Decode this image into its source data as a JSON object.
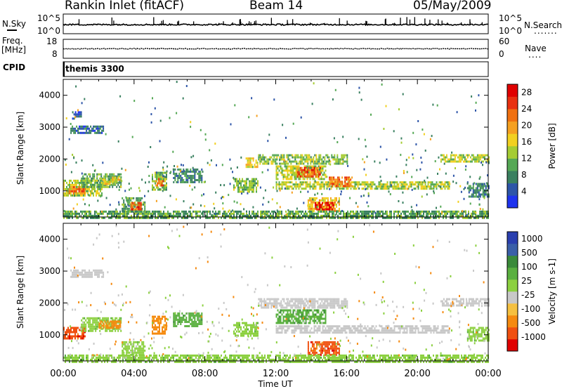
{
  "header": {
    "station": "Rankin Inlet (fitACF)",
    "beam": "Beam 14",
    "date": "05/May/2009"
  },
  "strip_labels": {
    "nsky": "N.Sky",
    "nsearch": "N.Search",
    "nsky_top": "10^5",
    "nsky_bot": "10^0",
    "nsearch_top": "10^5",
    "nsearch_bot": "10^0",
    "freq": "Freq.",
    "freq_unit": "[MHz]",
    "freq_top": "18",
    "freq_bot": "8",
    "nave": "Nave",
    "nave_top": "60",
    "nave_bot": "0",
    "cpid": "CPID",
    "cpid_value": "themis 3300"
  },
  "colors": {
    "power_scale": [
      "#1e33ee",
      "#2d55a8",
      "#3a8060",
      "#55a855",
      "#a5cc33",
      "#f2d020",
      "#f5a020",
      "#f07010",
      "#e83010",
      "#e00000"
    ],
    "velocity_scale": [
      "#e00000",
      "#f05010",
      "#f58a10",
      "#f5c040",
      "#c8c8c8",
      "#8cd040",
      "#5ab040",
      "#3a8a3a",
      "#3a5fa8",
      "#2a3faf"
    ],
    "ground_scatter": "#c8c8c8"
  },
  "chart_data": [
    {
      "type": "heatmap",
      "title": "",
      "xlabel": "",
      "ylabel": "Slant Range [km]",
      "xlim": [
        "00:00",
        "24:00"
      ],
      "ylim": [
        180,
        4500
      ],
      "x_ticks": [
        "00:00",
        "04:00",
        "08:00",
        "12:00",
        "16:00",
        "20:00",
        "00:00"
      ],
      "y_ticks": [
        1000,
        2000,
        3000,
        4000
      ],
      "colorbar": {
        "label": "Power [dB]",
        "ticks": [
          4,
          8,
          12,
          16,
          20,
          24,
          28
        ],
        "range": [
          0,
          30
        ]
      },
      "regions": [
        {
          "t0": 0.0,
          "t1": 2.2,
          "r0": 850,
          "r1": 1350,
          "value": 14
        },
        {
          "t0": 0.3,
          "t1": 1.2,
          "r0": 900,
          "r1": 1150,
          "value": 22
        },
        {
          "t0": 1.0,
          "t1": 3.3,
          "r0": 1150,
          "r1": 1550,
          "value": 10
        },
        {
          "t0": 2.2,
          "t1": 3.2,
          "r0": 1250,
          "r1": 1450,
          "value": 16
        },
        {
          "t0": 0.4,
          "t1": 2.3,
          "r0": 2850,
          "r1": 3050,
          "value": 6
        },
        {
          "t0": 0.5,
          "t1": 1.0,
          "r0": 3300,
          "r1": 3500,
          "value": 4
        },
        {
          "t0": 3.3,
          "t1": 4.6,
          "r0": 400,
          "r1": 800,
          "value": 10
        },
        {
          "t0": 3.8,
          "t1": 4.4,
          "r0": 450,
          "r1": 650,
          "value": 24
        },
        {
          "t0": 5.0,
          "t1": 5.8,
          "r0": 1050,
          "r1": 1600,
          "value": 12
        },
        {
          "t0": 5.2,
          "t1": 5.6,
          "r0": 1200,
          "r1": 1400,
          "value": 22
        },
        {
          "t0": 6.2,
          "t1": 7.8,
          "r0": 1300,
          "r1": 1700,
          "value": 8
        },
        {
          "t0": 9.6,
          "t1": 11.0,
          "r0": 1000,
          "r1": 1400,
          "value": 12
        },
        {
          "t0": 10.3,
          "t1": 11.0,
          "r0": 1750,
          "r1": 2050,
          "value": 16
        },
        {
          "t0": 11.0,
          "t1": 16.0,
          "r0": 1850,
          "r1": 2150,
          "value": 12
        },
        {
          "t0": 12.0,
          "t1": 14.8,
          "r0": 1350,
          "r1": 1800,
          "value": 14
        },
        {
          "t0": 13.2,
          "t1": 14.5,
          "r0": 1450,
          "r1": 1750,
          "value": 24
        },
        {
          "t0": 12.0,
          "t1": 21.8,
          "r0": 1050,
          "r1": 1300,
          "value": 14
        },
        {
          "t0": 15.0,
          "t1": 16.3,
          "r0": 1150,
          "r1": 1450,
          "value": 22
        },
        {
          "t0": 13.8,
          "t1": 15.6,
          "r0": 350,
          "r1": 800,
          "value": 18
        },
        {
          "t0": 14.2,
          "t1": 15.3,
          "r0": 400,
          "r1": 650,
          "value": 27
        },
        {
          "t0": 21.3,
          "t1": 24.0,
          "r0": 1950,
          "r1": 2150,
          "value": 14
        },
        {
          "t0": 22.8,
          "t1": 24.0,
          "r0": 800,
          "r1": 1250,
          "value": 8
        },
        {
          "t0": 0.0,
          "t1": 24.0,
          "r0": 180,
          "r1": 380,
          "value": 10
        }
      ]
    },
    {
      "type": "heatmap",
      "title": "",
      "xlabel": "Time UT",
      "ylabel": "Slant Range [km]",
      "xlim": [
        "00:00",
        "24:00"
      ],
      "ylim": [
        180,
        4500
      ],
      "x_ticks": [
        "00:00",
        "04:00",
        "08:00",
        "12:00",
        "16:00",
        "20:00",
        "00:00"
      ],
      "y_ticks": [
        1000,
        2000,
        3000,
        4000
      ],
      "colorbar": {
        "label": "Velocity [m s-1]",
        "ticks": [
          1000,
          500,
          100,
          25,
          -25,
          -100,
          -500,
          -1000
        ]
      },
      "regions": [
        {
          "t0": 0.0,
          "t1": 1.2,
          "r0": 900,
          "r1": 1250,
          "value": -500
        },
        {
          "t0": 1.0,
          "t1": 3.3,
          "r0": 1150,
          "r1": 1550,
          "value": 100
        },
        {
          "t0": 2.0,
          "t1": 3.2,
          "r0": 1200,
          "r1": 1450,
          "value": -100
        },
        {
          "t0": 0.4,
          "t1": 2.3,
          "r0": 2850,
          "r1": 3050,
          "value": 0
        },
        {
          "t0": 3.3,
          "t1": 4.6,
          "r0": 400,
          "r1": 800,
          "value": 100
        },
        {
          "t0": 5.0,
          "t1": 5.8,
          "r0": 1050,
          "r1": 1600,
          "value": -100
        },
        {
          "t0": 6.2,
          "t1": 7.8,
          "r0": 1300,
          "r1": 1700,
          "value": 500
        },
        {
          "t0": 9.6,
          "t1": 11.0,
          "r0": 1000,
          "r1": 1400,
          "value": 100
        },
        {
          "t0": 11.0,
          "t1": 16.0,
          "r0": 1850,
          "r1": 2150,
          "value": 0
        },
        {
          "t0": 12.0,
          "t1": 14.8,
          "r0": 1350,
          "r1": 1800,
          "value": 500
        },
        {
          "t0": 12.0,
          "t1": 21.8,
          "r0": 1050,
          "r1": 1300,
          "value": 0
        },
        {
          "t0": 13.8,
          "t1": 15.6,
          "r0": 350,
          "r1": 800,
          "value": -500
        },
        {
          "t0": 21.3,
          "t1": 24.0,
          "r0": 1950,
          "r1": 2150,
          "value": 0
        },
        {
          "t0": 22.8,
          "t1": 24.0,
          "r0": 800,
          "r1": 1250,
          "value": 100
        },
        {
          "t0": 0.0,
          "t1": 24.0,
          "r0": 180,
          "r1": 380,
          "value": 100
        }
      ]
    }
  ]
}
